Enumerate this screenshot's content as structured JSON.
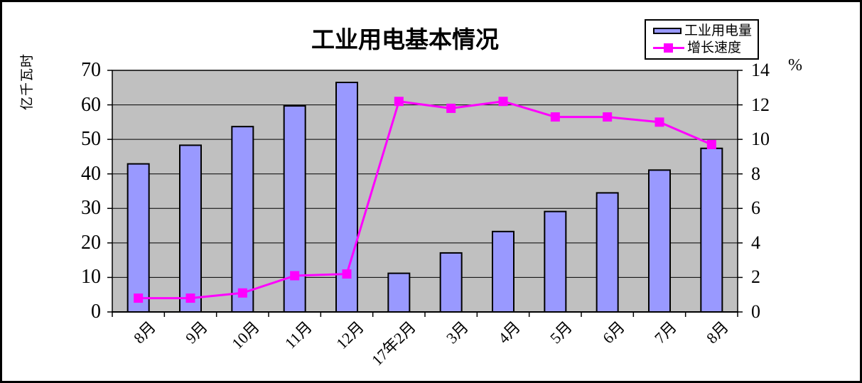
{
  "window": {
    "background_color": "#FFFFFF",
    "frame_border_color": "#000000"
  },
  "chart_data": {
    "type": "bar+line combo",
    "title": "工业用电基本情况",
    "categories": [
      "8月",
      "9月",
      "10月",
      "11月",
      "12月",
      "17年2月",
      "3月",
      "4月",
      "5月",
      "6月",
      "7月",
      "8月"
    ],
    "series": [
      {
        "name": "工业用电量",
        "type": "bar",
        "axis": "left",
        "color": "#9999FF",
        "border_color": "#000000",
        "values": [
          42.9,
          48.3,
          53.7,
          59.7,
          66.5,
          11.2,
          17.1,
          23.3,
          29.1,
          34.5,
          41.1,
          47.4
        ]
      },
      {
        "name": "增长速度",
        "type": "line",
        "axis": "right",
        "color": "#FF00FF",
        "marker": "square",
        "values": [
          0.8,
          0.8,
          1.1,
          2.1,
          2.2,
          12.2,
          11.8,
          12.2,
          11.3,
          11.3,
          11.0,
          9.7
        ]
      }
    ],
    "left_axis": {
      "unit_label": "亿千瓦时",
      "min": 0,
      "max": 70,
      "step": 10,
      "ticks": [
        "0",
        "10",
        "20",
        "30",
        "40",
        "50",
        "60",
        "70"
      ]
    },
    "right_axis": {
      "unit_label": "%",
      "min": 0,
      "max": 14,
      "step": 2,
      "ticks": [
        "0",
        "2",
        "4",
        "6",
        "8",
        "10",
        "12",
        "14"
      ]
    },
    "plot": {
      "background": "#C0C0C0",
      "grid": "horizontal",
      "grid_color": "#000000"
    },
    "legend": {
      "position": "top-right",
      "border_color": "#000000",
      "background": "#FFFFFF"
    }
  }
}
